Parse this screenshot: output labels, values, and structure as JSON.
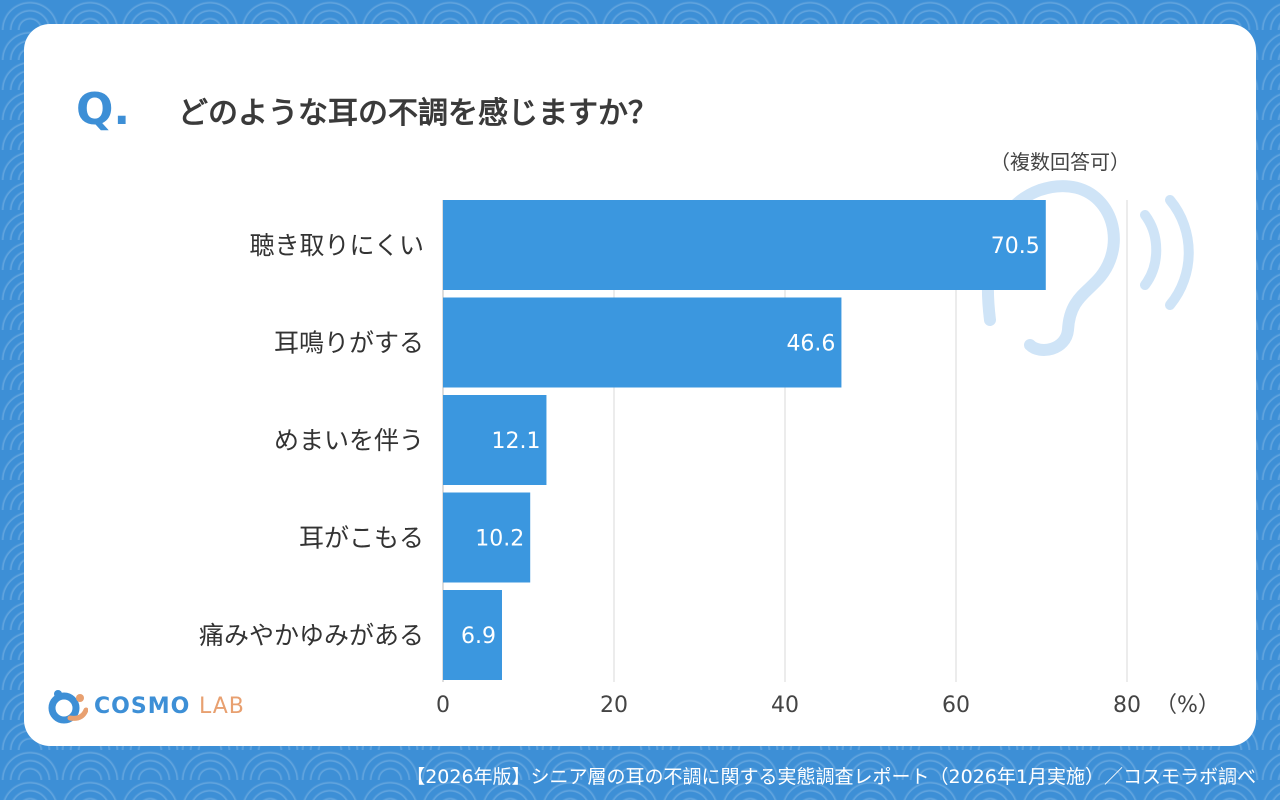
{
  "question_mark": "Q.",
  "title": "どのような耳の不調を感じますか？",
  "note": "（複数回答可）",
  "logo": {
    "main": "COSMO",
    "sub": "LAB"
  },
  "footer": "【2026年版】シニア層の耳の不調に関する実態調査レポート（2026年1月実施）／コスモラボ調べ",
  "colors": {
    "bar": "#3b97df",
    "accent": "#3d8fd6",
    "ear": "#cfe4f7",
    "grid": "#d8d8d8"
  },
  "chart_data": {
    "type": "bar",
    "orientation": "horizontal",
    "title": "どのような耳の不調を感じますか？",
    "categories": [
      "聴き取りにくい",
      "耳鳴りがする",
      "めまいを伴う",
      "耳がこもる",
      "痛みやかゆみがある"
    ],
    "values": [
      70.5,
      46.6,
      12.1,
      10.2,
      6.9
    ],
    "value_labels": [
      "70.5",
      "46.6",
      "12.1",
      "10.2",
      "6.9"
    ],
    "xlim": [
      0,
      80
    ],
    "xticks": [
      "0",
      "20",
      "40",
      "60",
      "80"
    ],
    "xticks_values": [
      0,
      20,
      40,
      60,
      80
    ],
    "xunit": "（%）",
    "grid": true
  }
}
